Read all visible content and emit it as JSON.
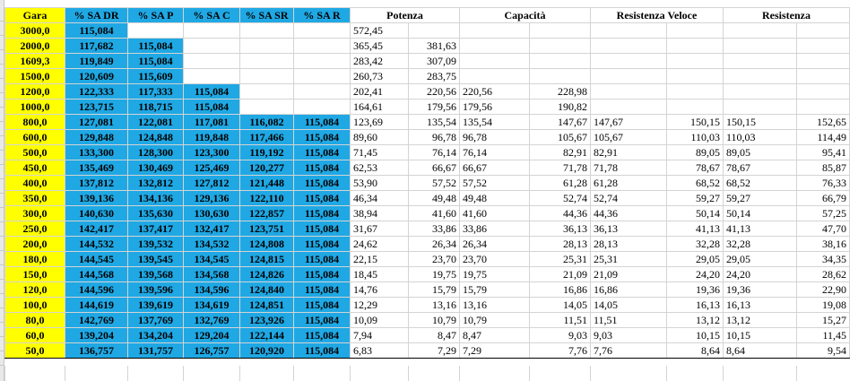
{
  "headers": {
    "gara": "Gara",
    "sa_dr": "% SA DR",
    "sa_p": "% SA P",
    "sa_c": "% SA C",
    "sa_sr": "% SA SR",
    "sa_r": "% SA R",
    "potenza": "Potenza",
    "capacita": "Capacità",
    "resistenza_veloce": "Resistenza Veloce",
    "resistenza": "Resistenza"
  },
  "rows": [
    {
      "gara": "3000,0",
      "dr": "115,084",
      "p": "",
      "c": "",
      "sr": "",
      "r": "",
      "pot1": "572,45",
      "pot2": "",
      "cap1": "",
      "cap2": "",
      "rv1": "",
      "rv2": "",
      "res1": "",
      "res2": ""
    },
    {
      "gara": "2000,0",
      "dr": "117,682",
      "p": "115,084",
      "c": "",
      "sr": "",
      "r": "",
      "pot1": "365,45",
      "pot2": "381,63",
      "cap1": "",
      "cap2": "",
      "rv1": "",
      "rv2": "",
      "res1": "",
      "res2": ""
    },
    {
      "gara": "1609,3",
      "dr": "119,849",
      "p": "115,084",
      "c": "",
      "sr": "",
      "r": "",
      "pot1": "283,42",
      "pot2": "307,09",
      "cap1": "",
      "cap2": "",
      "rv1": "",
      "rv2": "",
      "res1": "",
      "res2": ""
    },
    {
      "gara": "1500,0",
      "dr": "120,609",
      "p": "115,609",
      "c": "",
      "sr": "",
      "r": "",
      "pot1": "260,73",
      "pot2": "283,75",
      "cap1": "",
      "cap2": "",
      "rv1": "",
      "rv2": "",
      "res1": "",
      "res2": ""
    },
    {
      "gara": "1200,0",
      "dr": "122,333",
      "p": "117,333",
      "c": "115,084",
      "sr": "",
      "r": "",
      "pot1": "202,41",
      "pot2": "220,56",
      "cap1": "220,56",
      "cap2": "228,98",
      "rv1": "",
      "rv2": "",
      "res1": "",
      "res2": ""
    },
    {
      "gara": "1000,0",
      "dr": "123,715",
      "p": "118,715",
      "c": "115,084",
      "sr": "",
      "r": "",
      "pot1": "164,61",
      "pot2": "179,56",
      "cap1": "179,56",
      "cap2": "190,82",
      "rv1": "",
      "rv2": "",
      "res1": "",
      "res2": ""
    },
    {
      "gara": "800,0",
      "dr": "127,081",
      "p": "122,081",
      "c": "117,081",
      "sr": "116,082",
      "r": "115,084",
      "pot1": "123,69",
      "pot2": "135,54",
      "cap1": "135,54",
      "cap2": "147,67",
      "rv1": "147,67",
      "rv2": "150,15",
      "res1": "150,15",
      "res2": "152,65"
    },
    {
      "gara": "600,0",
      "dr": "129,848",
      "p": "124,848",
      "c": "119,848",
      "sr": "117,466",
      "r": "115,084",
      "pot1": "89,60",
      "pot2": "96,78",
      "cap1": "96,78",
      "cap2": "105,67",
      "rv1": "105,67",
      "rv2": "110,03",
      "res1": "110,03",
      "res2": "114,49"
    },
    {
      "gara": "500,0",
      "dr": "133,300",
      "p": "128,300",
      "c": "123,300",
      "sr": "119,192",
      "r": "115,084",
      "pot1": "71,45",
      "pot2": "76,14",
      "cap1": "76,14",
      "cap2": "82,91",
      "rv1": "82,91",
      "rv2": "89,05",
      "res1": "89,05",
      "res2": "95,41"
    },
    {
      "gara": "450,0",
      "dr": "135,469",
      "p": "130,469",
      "c": "125,469",
      "sr": "120,277",
      "r": "115,084",
      "pot1": "62,53",
      "pot2": "66,67",
      "cap1": "66,67",
      "cap2": "71,78",
      "rv1": "71,78",
      "rv2": "78,67",
      "res1": "78,67",
      "res2": "85,87"
    },
    {
      "gara": "400,0",
      "dr": "137,812",
      "p": "132,812",
      "c": "127,812",
      "sr": "121,448",
      "r": "115,084",
      "pot1": "53,90",
      "pot2": "57,52",
      "cap1": "57,52",
      "cap2": "61,28",
      "rv1": "61,28",
      "rv2": "68,52",
      "res1": "68,52",
      "res2": "76,33"
    },
    {
      "gara": "350,0",
      "dr": "139,136",
      "p": "134,136",
      "c": "129,136",
      "sr": "122,110",
      "r": "115,084",
      "pot1": "46,34",
      "pot2": "49,48",
      "cap1": "49,48",
      "cap2": "52,74",
      "rv1": "52,74",
      "rv2": "59,27",
      "res1": "59,27",
      "res2": "66,79"
    },
    {
      "gara": "300,0",
      "dr": "140,630",
      "p": "135,630",
      "c": "130,630",
      "sr": "122,857",
      "r": "115,084",
      "pot1": "38,94",
      "pot2": "41,60",
      "cap1": "41,60",
      "cap2": "44,36",
      "rv1": "44,36",
      "rv2": "50,14",
      "res1": "50,14",
      "res2": "57,25"
    },
    {
      "gara": "250,0",
      "dr": "142,417",
      "p": "137,417",
      "c": "132,417",
      "sr": "123,751",
      "r": "115,084",
      "pot1": "31,67",
      "pot2": "33,86",
      "cap1": "33,86",
      "cap2": "36,13",
      "rv1": "36,13",
      "rv2": "41,13",
      "res1": "41,13",
      "res2": "47,70"
    },
    {
      "gara": "200,0",
      "dr": "144,532",
      "p": "139,532",
      "c": "134,532",
      "sr": "124,808",
      "r": "115,084",
      "pot1": "24,62",
      "pot2": "26,34",
      "cap1": "26,34",
      "cap2": "28,13",
      "rv1": "28,13",
      "rv2": "32,28",
      "res1": "32,28",
      "res2": "38,16"
    },
    {
      "gara": "180,0",
      "dr": "144,545",
      "p": "139,545",
      "c": "134,545",
      "sr": "124,815",
      "r": "115,084",
      "pot1": "22,15",
      "pot2": "23,70",
      "cap1": "23,70",
      "cap2": "25,31",
      "rv1": "25,31",
      "rv2": "29,05",
      "res1": "29,05",
      "res2": "34,35"
    },
    {
      "gara": "150,0",
      "dr": "144,568",
      "p": "139,568",
      "c": "134,568",
      "sr": "124,826",
      "r": "115,084",
      "pot1": "18,45",
      "pot2": "19,75",
      "cap1": "19,75",
      "cap2": "21,09",
      "rv1": "21,09",
      "rv2": "24,20",
      "res1": "24,20",
      "res2": "28,62"
    },
    {
      "gara": "120,0",
      "dr": "144,596",
      "p": "139,596",
      "c": "134,596",
      "sr": "124,840",
      "r": "115,084",
      "pot1": "14,76",
      "pot2": "15,79",
      "cap1": "15,79",
      "cap2": "16,86",
      "rv1": "16,86",
      "rv2": "19,36",
      "res1": "19,36",
      "res2": "22,90"
    },
    {
      "gara": "100,0",
      "dr": "144,619",
      "p": "139,619",
      "c": "134,619",
      "sr": "124,851",
      "r": "115,084",
      "pot1": "12,29",
      "pot2": "13,16",
      "cap1": "13,16",
      "cap2": "14,05",
      "rv1": "14,05",
      "rv2": "16,13",
      "res1": "16,13",
      "res2": "19,08"
    },
    {
      "gara": "80,0",
      "dr": "142,769",
      "p": "137,769",
      "c": "132,769",
      "sr": "123,926",
      "r": "115,084",
      "pot1": "10,09",
      "pot2": "10,79",
      "cap1": "10,79",
      "cap2": "11,51",
      "rv1": "11,51",
      "rv2": "13,12",
      "res1": "13,12",
      "res2": "15,27"
    },
    {
      "gara": "60,0",
      "dr": "139,204",
      "p": "134,204",
      "c": "129,204",
      "sr": "122,144",
      "r": "115,084",
      "pot1": "7,94",
      "pot2": "8,47",
      "cap1": "8,47",
      "cap2": "9,03",
      "rv1": "9,03",
      "rv2": "10,15",
      "res1": "10,15",
      "res2": "11,45"
    },
    {
      "gara": "50,0",
      "dr": "136,757",
      "p": "131,757",
      "c": "126,757",
      "sr": "120,920",
      "r": "115,084",
      "pot1": "6,83",
      "pot2": "7,29",
      "cap1": "7,29",
      "cap2": "7,76",
      "rv1": "7,76",
      "rv2": "8,64",
      "res1": "8,64",
      "res2": "9,54"
    }
  ]
}
